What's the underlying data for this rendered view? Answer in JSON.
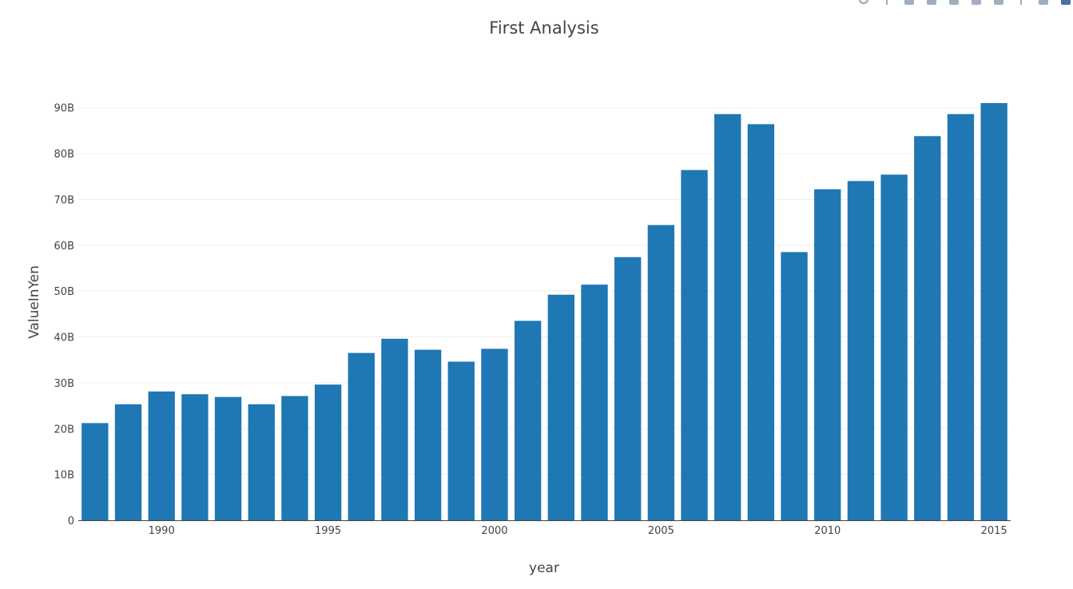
{
  "colors": {
    "bar": "#1f77b4",
    "grid": "#eeeeee",
    "axis_line": "#444444",
    "text": "#444444",
    "modebar_icon": "#a0aec0",
    "modebar_active": "#4a6fa5"
  },
  "modebar": {
    "icons": [
      "zoom-icon",
      "pan-icon",
      "zoom-in-icon",
      "zoom-out-icon",
      "autoscale-icon",
      "reset-axes-icon",
      "spike-lines-icon",
      "hover-closest-icon",
      "hover-compare-icon",
      "plotly-logo-icon"
    ]
  },
  "chart_data": {
    "type": "bar",
    "title": "First Analysis",
    "xlabel": "year",
    "ylabel": "ValueInYen",
    "x": [
      1988,
      1989,
      1990,
      1991,
      1992,
      1993,
      1994,
      1995,
      1996,
      1997,
      1998,
      1999,
      2000,
      2001,
      2002,
      2003,
      2004,
      2005,
      2006,
      2007,
      2008,
      2009,
      2010,
      2011,
      2012,
      2013,
      2014,
      2015
    ],
    "values": [
      21.2,
      25.3,
      28.1,
      27.5,
      26.9,
      25.3,
      27.1,
      29.6,
      36.5,
      39.6,
      37.2,
      34.6,
      37.4,
      43.5,
      49.2,
      51.4,
      57.4,
      64.4,
      76.4,
      88.6,
      86.4,
      58.5,
      72.2,
      74.0,
      75.4,
      83.8,
      88.6,
      91.0
    ],
    "value_unit": "billions",
    "xlim": [
      1987.5,
      2015.5
    ],
    "ylim": [
      0,
      91
    ],
    "x_ticks": [
      1990,
      1995,
      2000,
      2005,
      2010,
      2015
    ],
    "x_tick_labels": [
      "1990",
      "1995",
      "2000",
      "2005",
      "2010",
      "2015"
    ],
    "y_ticks": [
      0,
      10,
      20,
      30,
      40,
      50,
      60,
      70,
      80,
      90
    ],
    "y_tick_labels": [
      "0",
      "10B",
      "20B",
      "30B",
      "40B",
      "50B",
      "60B",
      "70B",
      "80B",
      "90B"
    ],
    "grid": true,
    "legend": "none"
  }
}
